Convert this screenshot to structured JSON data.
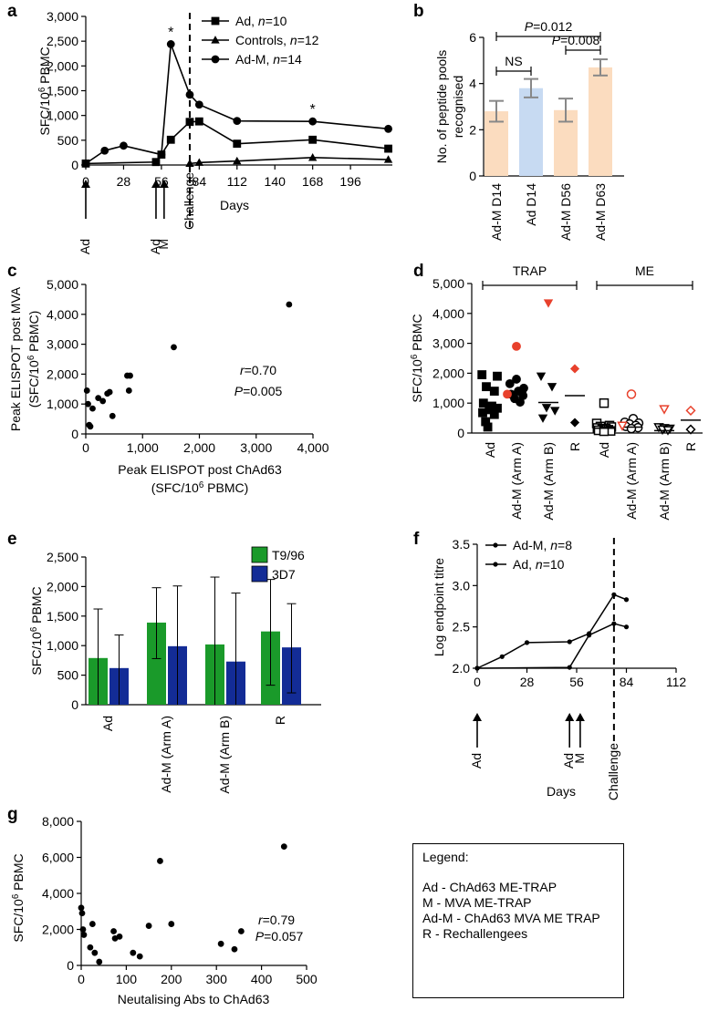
{
  "figure_panels": {
    "a": "a",
    "b": "b",
    "c": "c",
    "d": "d",
    "e": "e",
    "f": "f",
    "g": "g"
  },
  "legend_box": {
    "title": "Legend:",
    "items": [
      "Ad - ChAd63 ME-TRAP",
      "M - MVA ME-TRAP",
      "Ad-M - ChAd63 MVA ME TRAP",
      "R - Rechallengees"
    ]
  },
  "chart_data": [
    {
      "panel": "a",
      "type": "line",
      "ylabel": "SFC/10^6 PBMC",
      "xlabel": "Days",
      "ylim": [
        0,
        3000
      ],
      "yticks": [
        0,
        500,
        1000,
        1500,
        2000,
        2500,
        3000
      ],
      "ytick_labels": [
        "0",
        "500",
        "1,000",
        "1,500",
        "2,000",
        "2,500",
        "3,000"
      ],
      "xlim": [
        0,
        227
      ],
      "xticks": [
        0,
        28,
        56,
        84,
        112,
        140,
        168,
        196
      ],
      "vline": {
        "x": 77,
        "label": "Challenge"
      },
      "arrows": [
        {
          "x": 0,
          "label": "Ad"
        },
        {
          "x": 52,
          "label": "Ad"
        },
        {
          "x": 58,
          "label": "M"
        }
      ],
      "series": [
        {
          "name": "Ad",
          "n_label": "n=10",
          "marker": "square",
          "x": [
            0,
            52,
            56,
            63,
            77,
            84,
            112,
            168,
            224
          ],
          "y": [
            30,
            60,
            210,
            510,
            870,
            880,
            430,
            510,
            330
          ]
        },
        {
          "name": "Controls",
          "n_label": "n=12",
          "marker": "triangle",
          "x": [
            77,
            84,
            112,
            168,
            224
          ],
          "y": [
            30,
            50,
            80,
            150,
            110
          ]
        },
        {
          "name": "Ad-M",
          "n_label": "n=14",
          "marker": "circle",
          "x": [
            0,
            14,
            28,
            56,
            63,
            77,
            84,
            112,
            168,
            224
          ],
          "y": [
            30,
            290,
            390,
            210,
            2440,
            1420,
            1220,
            890,
            880,
            730
          ]
        }
      ],
      "annotations": [
        {
          "x": 63,
          "y": 2440,
          "text": "*"
        },
        {
          "x": 168,
          "y": 880,
          "text": "*"
        }
      ]
    },
    {
      "panel": "b",
      "type": "bar",
      "ylabel": "No. of peptide pools recognised",
      "categories": [
        "Ad-M D14",
        "Ad D14",
        "Ad-M D56",
        "Ad-M D63"
      ],
      "values": [
        2.8,
        3.8,
        2.85,
        4.7
      ],
      "errors": [
        0.45,
        0.4,
        0.5,
        0.35
      ],
      "colors": [
        "#fbdcbf",
        "#c7daf2",
        "#fbdcbf",
        "#fbdcbf"
      ],
      "ylim": [
        0,
        6
      ],
      "yticks": [
        0,
        2,
        4,
        6
      ],
      "ytick_labels": [
        "0",
        "2",
        "4",
        "6"
      ],
      "comparisons": [
        {
          "from": 0,
          "to": 1,
          "label": "NS"
        },
        {
          "from": 2,
          "to": 3,
          "label": "P=0.008"
        },
        {
          "from": 0,
          "to": 3,
          "label": "P=0.012"
        }
      ]
    },
    {
      "panel": "c",
      "type": "scatter",
      "xlabel_lines": [
        "Peak ELISPOT post ChAd63",
        "(SFC/10^6 PBMC)"
      ],
      "ylabel_lines": [
        "Peak ELISPOT post MVA",
        "(SFC/10^6 PBMC)"
      ],
      "xlim": [
        0,
        4000
      ],
      "xticks": [
        0,
        1000,
        2000,
        3000,
        4000
      ],
      "xtick_labels": [
        "0",
        "1,000",
        "2,000",
        "3,000",
        "4,000"
      ],
      "ylim": [
        0,
        5000
      ],
      "yticks": [
        0,
        1000,
        2000,
        3000,
        4000,
        5000
      ],
      "ytick_labels": [
        "0",
        "1,000",
        "2,000",
        "3,000",
        "4,000",
        "5,000"
      ],
      "x": [
        20,
        60,
        80,
        40,
        120,
        220,
        300,
        380,
        420,
        470,
        730,
        780,
        760,
        1550,
        3580
      ],
      "y": [
        1450,
        300,
        250,
        1000,
        850,
        1200,
        1100,
        1350,
        1400,
        600,
        1950,
        1950,
        1450,
        2900,
        4330
      ],
      "stats": {
        "r": "r=0.70",
        "p": "P=0.005"
      }
    },
    {
      "panel": "d",
      "type": "scatter",
      "ylabel": "SFC/10^6 PBMC",
      "ylim": [
        0,
        5000
      ],
      "yticks": [
        0,
        1000,
        2000,
        3000,
        4000,
        5000
      ],
      "ytick_labels": [
        "0",
        "1,000",
        "2,000",
        "3,000",
        "4,000",
        "5,000"
      ],
      "categories": [
        "Ad",
        "Ad-M (Arm A)",
        "Ad-M (Arm B)",
        "R",
        "Ad",
        "Ad-M (Arm A)",
        "Ad-M (Arm B)",
        "R"
      ],
      "brackets": [
        {
          "from": 0,
          "to": 3,
          "label": "TRAP"
        },
        {
          "from": 4,
          "to": 7,
          "label": "ME"
        }
      ],
      "groups": [
        {
          "marker": "square",
          "filled": true,
          "color": "#000000",
          "median": 780,
          "points": [
            [
              -0.22,
              1950
            ],
            [
              0.2,
              1900
            ],
            [
              -0.1,
              1550
            ],
            [
              0.12,
              1400
            ],
            [
              -0.18,
              1000
            ],
            [
              0.05,
              900
            ],
            [
              0.2,
              830
            ],
            [
              -0.02,
              780
            ],
            [
              -0.2,
              680
            ],
            [
              0.12,
              620
            ],
            [
              -0.12,
              380
            ],
            [
              -0.06,
              200
            ]
          ]
        },
        {
          "marker": "circle",
          "filled": true,
          "color": "#000000",
          "median": 1380,
          "points": [
            [
              0.0,
              1800
            ],
            [
              -0.18,
              1650
            ],
            [
              0.2,
              1500
            ],
            [
              0.05,
              1400
            ],
            [
              -0.15,
              1300
            ],
            [
              0.18,
              1250
            ],
            [
              -0.05,
              1150
            ],
            [
              0.1,
              1030
            ]
          ]
        },
        {
          "marker": "triangle-down",
          "filled": true,
          "color": "#000000",
          "median": 1020,
          "points": [
            [
              -0.2,
              1900
            ],
            [
              0.1,
              1550
            ],
            [
              -0.05,
              850
            ],
            [
              0.18,
              750
            ],
            [
              -0.15,
              500
            ]
          ]
        },
        {
          "marker": "diamond",
          "filled": true,
          "color": "#000000",
          "median": 1250,
          "points": [
            [
              0.0,
              350
            ]
          ]
        },
        {
          "marker": "square",
          "filled": false,
          "color": "#000000",
          "median": 160,
          "points": [
            [
              0.0,
              1000
            ],
            [
              -0.2,
              320
            ],
            [
              0.15,
              250
            ],
            [
              -0.1,
              220
            ],
            [
              0.2,
              200
            ],
            [
              -0.18,
              170
            ],
            [
              0.05,
              150
            ],
            [
              -0.05,
              130
            ],
            [
              0.12,
              110
            ],
            [
              -0.15,
              90
            ],
            [
              0.18,
              70
            ],
            [
              0.0,
              60
            ]
          ]
        },
        {
          "marker": "circle",
          "filled": false,
          "color": "#000000",
          "median": 200,
          "points": [
            [
              0.05,
              480
            ],
            [
              -0.18,
              360
            ],
            [
              0.2,
              330
            ],
            [
              -0.05,
              300
            ],
            [
              0.12,
              250
            ],
            [
              -0.15,
              220
            ],
            [
              0.18,
              180
            ],
            [
              0.0,
              150
            ]
          ]
        },
        {
          "marker": "triangle-down",
          "filled": false,
          "color": "#000000",
          "median": 80,
          "points": [
            [
              -0.15,
              200
            ],
            [
              0.0,
              170
            ],
            [
              0.15,
              150
            ],
            [
              -0.05,
              120
            ],
            [
              0.1,
              100
            ]
          ]
        },
        {
          "marker": "diamond",
          "filled": false,
          "color": "#000000",
          "median": 430,
          "points": [
            [
              0.0,
              120
            ]
          ]
        }
      ],
      "highlighted_points": [
        {
          "group": 1,
          "dx": 0.0,
          "y": 2900,
          "marker": "circle",
          "filled": true
        },
        {
          "group": 1,
          "dx": -0.25,
          "y": 1300,
          "marker": "circle",
          "filled": true
        },
        {
          "group": 2,
          "dx": 0.0,
          "y": 4350,
          "marker": "triangle-down",
          "filled": true
        },
        {
          "group": 3,
          "dx": 0.0,
          "y": 2150,
          "marker": "diamond",
          "filled": true
        },
        {
          "group": 5,
          "dx": 0.0,
          "y": 1300,
          "marker": "circle",
          "filled": false
        },
        {
          "group": 5,
          "dx": -0.25,
          "y": 250,
          "marker": "triangle-down",
          "filled": false
        },
        {
          "group": 6,
          "dx": 0.0,
          "y": 800,
          "marker": "triangle-down",
          "filled": false
        },
        {
          "group": 7,
          "dx": 0.0,
          "y": 750,
          "marker": "diamond",
          "filled": false
        }
      ],
      "highlight_color": "#e8412c"
    },
    {
      "panel": "e",
      "type": "bar",
      "ylabel": "SFC/10^6 PBMC",
      "categories": [
        "Ad",
        "Ad-M (Arm A)",
        "Ad-M (Arm B)",
        "R"
      ],
      "ylim": [
        0,
        2500
      ],
      "yticks": [
        0,
        500,
        1000,
        1500,
        2000,
        2500
      ],
      "ytick_labels": [
        "0",
        "500",
        "1,000",
        "1,500",
        "2,000",
        "2,500"
      ],
      "series": [
        {
          "name": "T9/96",
          "color": "#1a9a2a",
          "values": [
            790,
            1390,
            1020,
            1240
          ],
          "err_high": [
            1620,
            1980,
            2160,
            2120
          ],
          "err_low": [
            0,
            780,
            0,
            330
          ]
        },
        {
          "name": "3D7",
          "color": "#132c96",
          "values": [
            620,
            990,
            730,
            970
          ],
          "err_high": [
            1180,
            2010,
            1890,
            1710
          ],
          "err_low": [
            0,
            0,
            0,
            200
          ]
        }
      ]
    },
    {
      "panel": "f",
      "type": "line",
      "ylabel": "Log endpoint titre",
      "xlabel": "Days",
      "ylim": [
        2.0,
        3.5
      ],
      "yticks": [
        2.0,
        2.5,
        3.0,
        3.5
      ],
      "ytick_labels": [
        "2.0",
        "2.5",
        "3.0",
        "3.5"
      ],
      "xlim": [
        0,
        112
      ],
      "xticks": [
        0,
        28,
        56,
        84,
        112
      ],
      "vline": {
        "x": 77,
        "label": "Challenge"
      },
      "arrows": [
        {
          "x": 0,
          "label": "Ad"
        },
        {
          "x": 52,
          "label": "Ad"
        },
        {
          "x": 58,
          "label": "M"
        }
      ],
      "series": [
        {
          "name": "Ad-M",
          "n_label": "n=8",
          "x": [
            0,
            14,
            28,
            52,
            63,
            77,
            84
          ],
          "y": [
            2.0,
            2.14,
            2.31,
            2.32,
            2.42,
            2.89,
            2.83
          ]
        },
        {
          "name": "Ad",
          "n_label": "n=10",
          "x": [
            0,
            52,
            63,
            77,
            84
          ],
          "y": [
            2.0,
            2.01,
            2.4,
            2.54,
            2.5
          ]
        }
      ]
    },
    {
      "panel": "g",
      "type": "scatter",
      "xlabel": "Neutalising Abs to ChAd63",
      "ylabel": "SFC/10^6 PBMC",
      "xlim": [
        0,
        500
      ],
      "xticks": [
        0,
        100,
        200,
        300,
        400,
        500
      ],
      "xtick_labels": [
        "0",
        "100",
        "200",
        "300",
        "400",
        "500"
      ],
      "ylim": [
        0,
        8000
      ],
      "yticks": [
        0,
        2000,
        4000,
        6000,
        8000
      ],
      "ytick_labels": [
        "0",
        "2,000",
        "4,000",
        "6,000",
        "8,000"
      ],
      "x": [
        0,
        2,
        4,
        6,
        20,
        25,
        30,
        40,
        72,
        75,
        85,
        115,
        130,
        150,
        175,
        200,
        310,
        340,
        355,
        450
      ],
      "y": [
        3200,
        2900,
        2000,
        1700,
        1000,
        2300,
        700,
        200,
        1900,
        1500,
        1600,
        700,
        500,
        2200,
        5800,
        2300,
        1200,
        900,
        1900,
        6600
      ],
      "stats": {
        "r": "r=0.79",
        "p": "P=0.057"
      }
    }
  ]
}
